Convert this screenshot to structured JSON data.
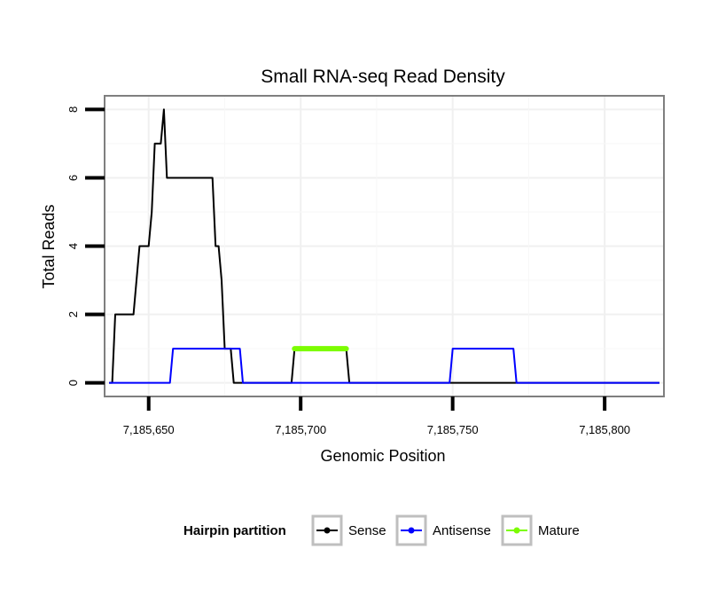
{
  "chart_data": {
    "type": "line",
    "title": "Small RNA-seq Read Density",
    "xlabel": "Genomic Position",
    "ylabel": "Total Reads",
    "xlim": [
      7185635.5,
      7185819.5
    ],
    "ylim": [
      -0.4,
      8.4
    ],
    "x_ticks": [
      7185650,
      7185700,
      7185750,
      7185800
    ],
    "x_tick_labels": [
      "7,185,650",
      "7,185,700",
      "7,185,750",
      "7,185,800"
    ],
    "y_ticks": [
      0,
      2,
      4,
      6,
      8
    ],
    "y_tick_labels": [
      "0",
      "2",
      "4",
      "6",
      "8"
    ],
    "grid": true,
    "legend_title": "Hairpin partition",
    "legend_position": "bottom",
    "series": [
      {
        "name": "Sense",
        "color": "#000000",
        "x": [
          7185637,
          7185638,
          7185639,
          7185640,
          7185642,
          7185643,
          7185644,
          7185645,
          7185646,
          7185647,
          7185648,
          7185649,
          7185650,
          7185651,
          7185652,
          7185653,
          7185654,
          7185655,
          7185656,
          7185657,
          7185658,
          7185659,
          7185660,
          7185665,
          7185670,
          7185671,
          7185672,
          7185673,
          7185674,
          7185675,
          7185676,
          7185677,
          7185678,
          7185697,
          7185698,
          7185715,
          7185716,
          7185818
        ],
        "y": [
          0,
          0,
          2,
          2,
          2,
          2,
          2,
          2,
          3,
          4,
          4,
          4,
          4,
          5,
          7,
          7,
          7,
          8,
          6,
          6,
          6,
          6,
          6,
          6,
          6,
          6,
          4,
          4,
          3,
          1,
          1,
          1,
          0,
          0,
          1,
          1,
          0,
          0
        ]
      },
      {
        "name": "Antisense",
        "color": "#0000ff",
        "x": [
          7185637,
          7185657,
          7185658,
          7185680,
          7185681,
          7185749,
          7185750,
          7185770,
          7185771,
          7185818
        ],
        "y": [
          0,
          0,
          1,
          1,
          0,
          0,
          1,
          1,
          0,
          0
        ]
      },
      {
        "name": "Mature",
        "color": "#7cfc00",
        "x": [
          7185698,
          7185715
        ],
        "y": [
          1,
          1
        ]
      }
    ]
  }
}
